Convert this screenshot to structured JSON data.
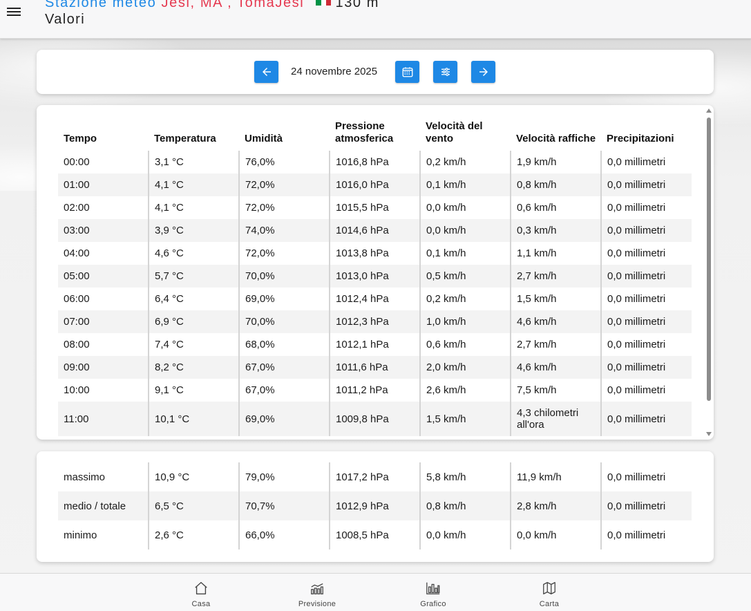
{
  "header": {
    "title_prefix": "Stazione meteo",
    "title_location": "Jesi, MA , TomaJesi",
    "altitude": "130 m",
    "subtitle": "Valori"
  },
  "navigation": {
    "date": "24 novembre 2025"
  },
  "table": {
    "columns": [
      "Tempo",
      "Temperatura",
      "Umidità",
      "Pressione atmosferica",
      "Velocità del vento",
      "Velocità raffiche",
      "Precipitazioni"
    ],
    "rows": [
      [
        "00:00",
        "3,1 °C",
        "76,0%",
        "1016,8 hPa",
        "0,2 km/h",
        "1,9 km/h",
        "0,0 millimetri"
      ],
      [
        "01:00",
        "4,1 °C",
        "72,0%",
        "1016,0 hPa",
        "0,1 km/h",
        "0,8 km/h",
        "0,0 millimetri"
      ],
      [
        "02:00",
        "4,1 °C",
        "72,0%",
        "1015,5 hPa",
        "0,0 km/h",
        "0,6 km/h",
        "0,0 millimetri"
      ],
      [
        "03:00",
        "3,9 °C",
        "74,0%",
        "1014,6 hPa",
        "0,0 km/h",
        "0,3 km/h",
        "0,0 millimetri"
      ],
      [
        "04:00",
        "4,6 °C",
        "72,0%",
        "1013,8 hPa",
        "0,1 km/h",
        "1,1 km/h",
        "0,0 millimetri"
      ],
      [
        "05:00",
        "5,7 °C",
        "70,0%",
        "1013,0 hPa",
        "0,5 km/h",
        "2,7 km/h",
        "0,0 millimetri"
      ],
      [
        "06:00",
        "6,4 °C",
        "69,0%",
        "1012,4 hPa",
        "0,2 km/h",
        "1,5 km/h",
        "0,0 millimetri"
      ],
      [
        "07:00",
        "6,9 °C",
        "70,0%",
        "1012,3 hPa",
        "1,0 km/h",
        "4,6 km/h",
        "0,0 millimetri"
      ],
      [
        "08:00",
        "7,4 °C",
        "68,0%",
        "1012,1 hPa",
        "0,6 km/h",
        "2,7 km/h",
        "0,0 millimetri"
      ],
      [
        "09:00",
        "8,2 °C",
        "67,0%",
        "1011,6 hPa",
        "2,0 km/h",
        "4,6 km/h",
        "0,0 millimetri"
      ],
      [
        "10:00",
        "9,1 °C",
        "67,0%",
        "1011,2 hPa",
        "2,6 km/h",
        "7,5 km/h",
        "0,0 millimetri"
      ],
      [
        "11:00",
        "10,1 °C",
        "69,0%",
        "1009,8 hPa",
        "1,5 km/h",
        "4,3 chilometri all'ora",
        "0,0 millimetri"
      ]
    ]
  },
  "summary": {
    "rows": [
      [
        "massimo",
        "10,9 °C",
        "79,0%",
        "1017,2 hPa",
        "5,8 km/h",
        "11,9 km/h",
        "0,0 millimetri"
      ],
      [
        "medio / totale",
        "6,5 °C",
        "70,7%",
        "1012,9 hPa",
        "0,8 km/h",
        "2,8 km/h",
        "0,0 millimetri"
      ],
      [
        "minimo",
        "2,6 °C",
        "66,0%",
        "1008,5 hPa",
        "0,0 km/h",
        "0,0 km/h",
        "0,0 millimetri"
      ]
    ]
  },
  "bottom_nav": [
    {
      "label": "Casa",
      "icon": "home-icon"
    },
    {
      "label": "Previsione",
      "icon": "forecast-icon"
    },
    {
      "label": "Grafico",
      "icon": "chart-icon"
    },
    {
      "label": "Carta",
      "icon": "map-icon"
    }
  ],
  "colors": {
    "accent": "#1e88e5",
    "location_red": "#e53950",
    "flag": [
      "#009246",
      "#ffffff",
      "#ce2b37"
    ]
  }
}
